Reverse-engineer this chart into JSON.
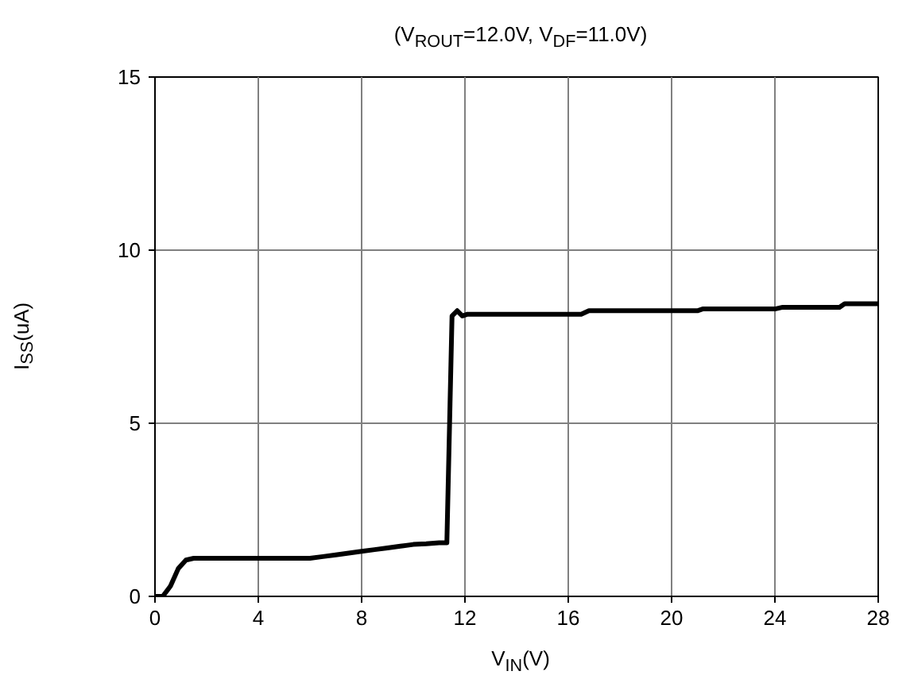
{
  "chart_data": {
    "type": "line",
    "title": "(V$_{ROUT}$=12.0V, V$_{DF}$=11.0V)",
    "xlabel": "V$_{IN}$(V)",
    "ylabel": "I$_{SS}$(uA)",
    "x": [
      0,
      0.3,
      0.6,
      0.9,
      1.2,
      1.5,
      2,
      4,
      6,
      6.5,
      7,
      7.5,
      8,
      8.5,
      9,
      9.5,
      10,
      10.5,
      11,
      11.3,
      11.5,
      11.7,
      11.9,
      12.1,
      12.5,
      14,
      16.5,
      16.8,
      18,
      21,
      21.2,
      24,
      24.3,
      26.5,
      26.7,
      28
    ],
    "series": [
      {
        "color": "#000000",
        "values": [
          0,
          0,
          0.3,
          0.8,
          1.05,
          1.1,
          1.1,
          1.1,
          1.1,
          1.15,
          1.2,
          1.25,
          1.3,
          1.35,
          1.4,
          1.45,
          1.5,
          1.52,
          1.55,
          1.55,
          8.1,
          8.25,
          8.1,
          8.15,
          8.15,
          8.15,
          8.15,
          8.25,
          8.25,
          8.25,
          8.3,
          8.3,
          8.35,
          8.35,
          8.45,
          8.45
        ]
      }
    ],
    "xlim": [
      0,
      28
    ],
    "ylim": [
      0,
      15
    ],
    "xticks": [
      0,
      4,
      8,
      12,
      16,
      20,
      24,
      28
    ],
    "yticks": [
      0,
      5,
      10,
      15
    ],
    "grid": true,
    "marker": "none",
    "line_style": "solid"
  }
}
